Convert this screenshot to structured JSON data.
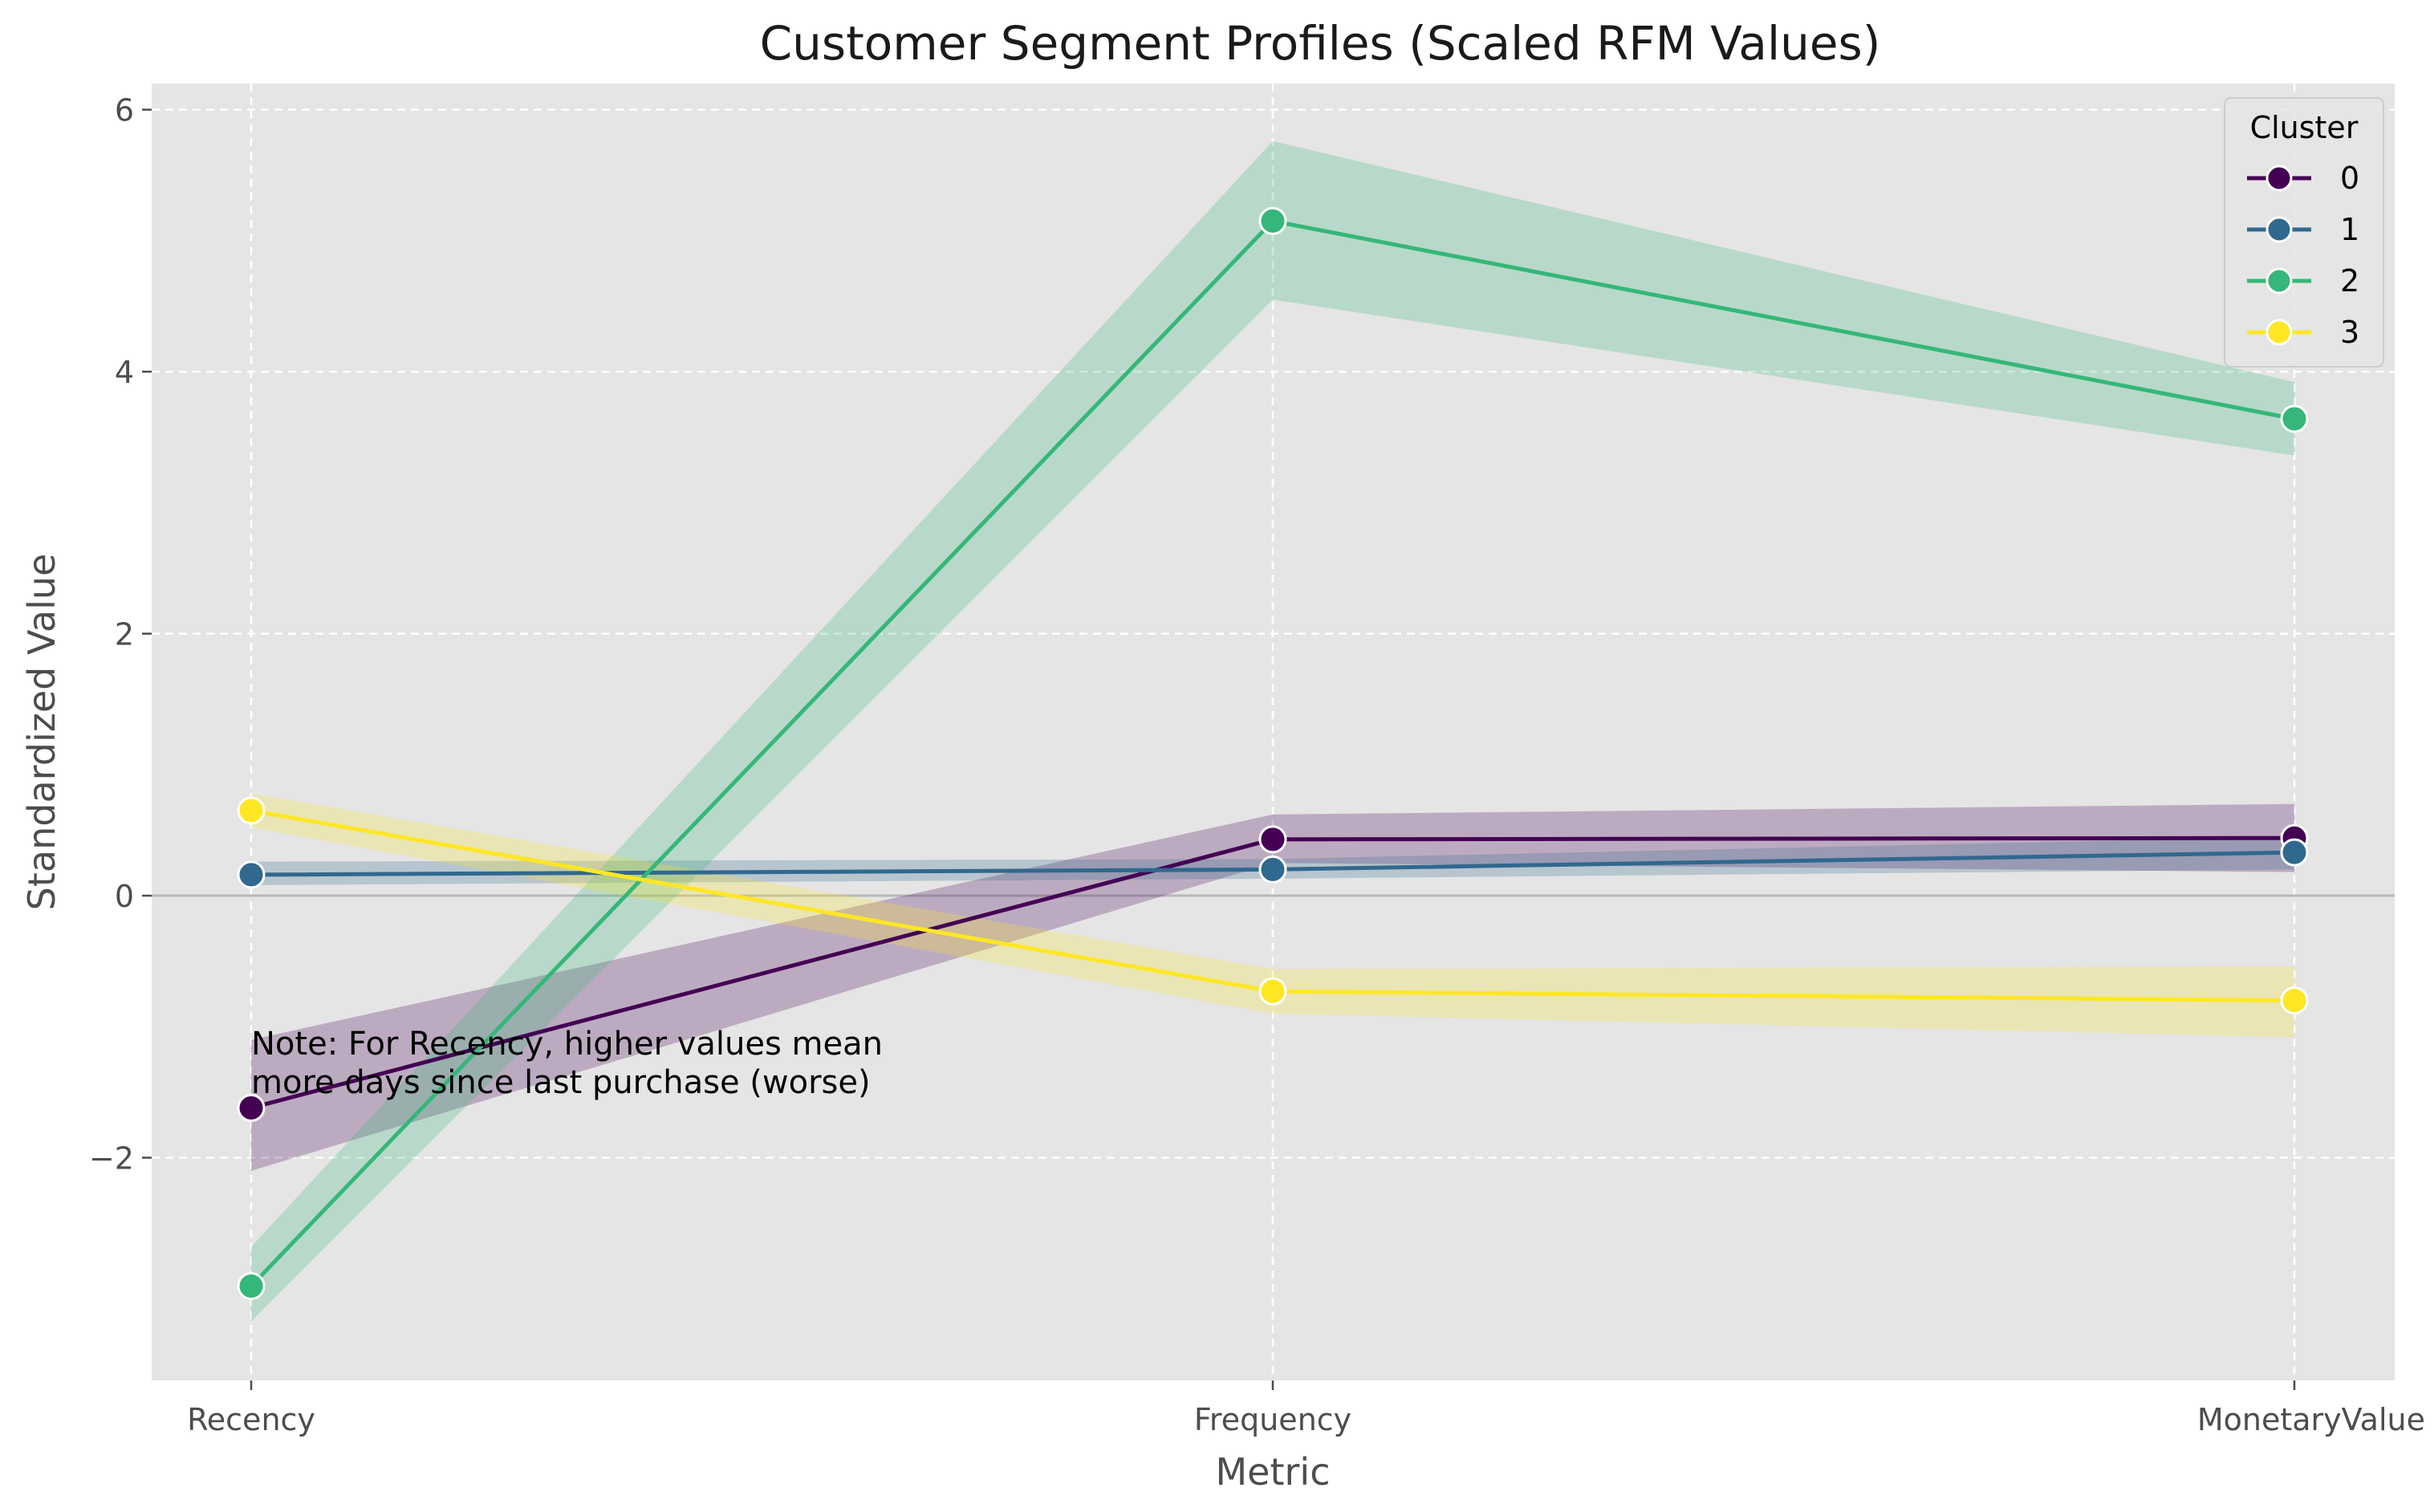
{
  "chart_data": {
    "type": "line",
    "title": "Customer Segment Profiles (Scaled RFM Values)",
    "xlabel": "Metric",
    "ylabel": "Standardized Value",
    "categories": [
      "Recency",
      "Frequency",
      "MonetaryValue"
    ],
    "ylim": [
      -3.7,
      6.2
    ],
    "yticks": [
      -2,
      0,
      2,
      4,
      6
    ],
    "ytick_labels": [
      "−2",
      "0",
      "2",
      "4",
      "6"
    ],
    "grid": true,
    "reference_line_y": 0,
    "legend": {
      "title": "Cluster",
      "position": "top-right"
    },
    "series": [
      {
        "name": "0",
        "color": "#440154",
        "values": [
          -1.62,
          0.43,
          0.44
        ],
        "lower": [
          -2.1,
          0.25,
          0.18
        ],
        "upper": [
          -1.1,
          0.62,
          0.7
        ]
      },
      {
        "name": "1",
        "color": "#31688e",
        "values": [
          0.16,
          0.2,
          0.33
        ],
        "lower": [
          0.08,
          0.13,
          0.2
        ],
        "upper": [
          0.26,
          0.28,
          0.45
        ]
      },
      {
        "name": "2",
        "color": "#35b779",
        "values": [
          -2.98,
          5.15,
          3.64
        ],
        "lower": [
          -3.25,
          4.55,
          3.36
        ],
        "upper": [
          -2.68,
          5.76,
          3.92
        ]
      },
      {
        "name": "3",
        "color": "#fde725",
        "values": [
          0.65,
          -0.73,
          -0.8
        ],
        "lower": [
          0.52,
          -0.9,
          -1.08
        ],
        "upper": [
          0.78,
          -0.56,
          -0.54
        ]
      }
    ],
    "annotation": {
      "line1": "Note: For Recency, higher values mean",
      "line2": "more days since last purchase (worse)"
    }
  }
}
